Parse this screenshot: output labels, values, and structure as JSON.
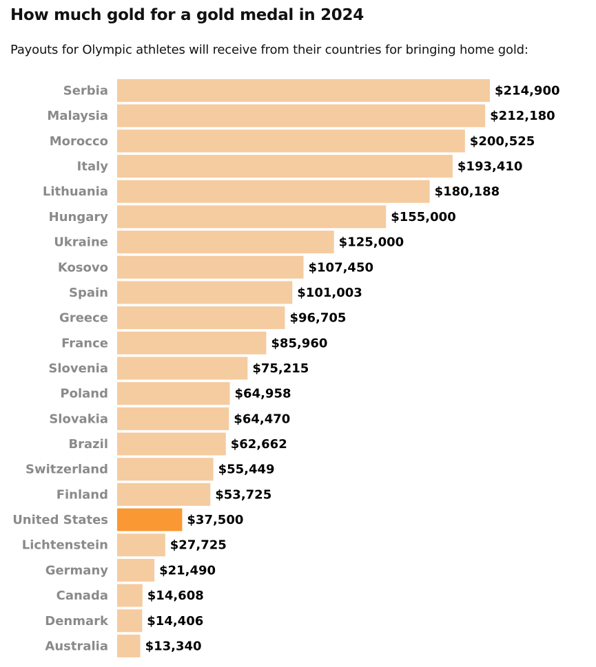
{
  "chart_data": {
    "type": "bar",
    "orientation": "horizontal",
    "title": "How much gold for a gold medal in 2024",
    "subtitle": "Payouts for Olympic athletes will receive from their countries for bringing home gold:",
    "categories": [
      "Serbia",
      "Malaysia",
      "Morocco",
      "Italy",
      "Lithuania",
      "Hungary",
      "Ukraine",
      "Kosovo",
      "Spain",
      "Greece",
      "France",
      "Slovenia",
      "Poland",
      "Slovakia",
      "Brazil",
      "Switzerland",
      "Finland",
      "United States",
      "Lichtenstein",
      "Germany",
      "Canada",
      "Denmark",
      "Australia"
    ],
    "values": [
      214900,
      212180,
      200525,
      193410,
      180188,
      155000,
      125000,
      107450,
      101003,
      96705,
      85960,
      75215,
      64958,
      64470,
      62662,
      55449,
      53725,
      37500,
      27725,
      21490,
      14608,
      14406,
      13340
    ],
    "data_labels": [
      "$214,900",
      "$212,180",
      "$200,525",
      "$193,410",
      "$180,188",
      "$155,000",
      "$125,000",
      "$107,450",
      "$101,003",
      "$96,705",
      "$85,960",
      "$75,215",
      "$64,958",
      "$64,470",
      "$62,662",
      "$55,449",
      "$53,725",
      "$37,500",
      "$27,725",
      "$21,490",
      "$14,608",
      "$14,406",
      "$13,340"
    ],
    "highlight": "United States",
    "colors": {
      "bar": "#f5cba0",
      "highlight": "#fa9833"
    },
    "xlim": [
      0,
      214900
    ],
    "grid": false,
    "legend": "none"
  }
}
